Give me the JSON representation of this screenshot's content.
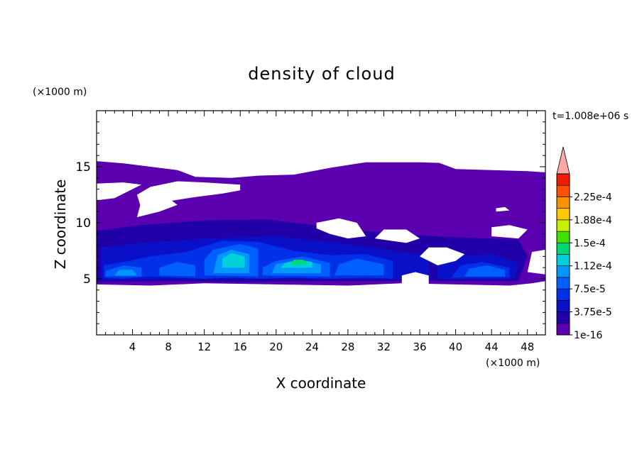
{
  "chart_data": {
    "type": "contour",
    "title": "density of cloud",
    "xlabel": "X coordinate",
    "ylabel": "Z coordinate",
    "x_unit": "(×1000 m)",
    "y_unit": "(×1000 m)",
    "time_label": "t=1.008e+06 s",
    "xlim": [
      0,
      50
    ],
    "ylim": [
      0,
      20
    ],
    "x_ticks": [
      4,
      8,
      12,
      16,
      20,
      24,
      28,
      32,
      36,
      40,
      44,
      48
    ],
    "y_ticks": [
      5,
      10,
      15
    ],
    "colorbar": {
      "levels": [
        1e-16,
        1.875e-05,
        3.75e-05,
        5.625e-05,
        7.5e-05,
        9.375e-05,
        0.0001125,
        0.00013125,
        0.00015,
        0.00016875,
        0.0001875,
        0.00020625,
        0.000225,
        0.00024375
      ],
      "tick_labels": [
        "1e-16",
        "3.75e-5",
        "7.5e-5",
        "1.12e-4",
        "1.5e-4",
        "1.88e-4",
        "2.25e-4"
      ],
      "colors": [
        "#5a00b0",
        "#2200a8",
        "#0a10c8",
        "#0030e8",
        "#0060ff",
        "#0098ff",
        "#00d0d8",
        "#00d870",
        "#40e000",
        "#c8f000",
        "#ffc800",
        "#ff9000",
        "#ff5000",
        "#ee1c00"
      ],
      "extend_color": "#ffa8a8"
    },
    "regions": [
      {
        "level": 1,
        "polygon": [
          [
            0,
            4.5
          ],
          [
            6,
            4.4
          ],
          [
            12,
            4.6
          ],
          [
            20,
            4.5
          ],
          [
            28,
            4.4
          ],
          [
            34,
            4.6
          ],
          [
            40,
            4.5
          ],
          [
            46,
            4.4
          ],
          [
            48.5,
            4.6
          ],
          [
            50,
            4.8
          ],
          [
            50,
            15.1
          ],
          [
            46,
            15.2
          ],
          [
            40,
            15.3
          ],
          [
            36,
            15.4
          ],
          [
            30,
            15.4
          ],
          [
            26,
            14.9
          ],
          [
            22,
            14.3
          ],
          [
            18,
            14.2
          ],
          [
            15,
            14.0
          ],
          [
            11,
            14.1
          ],
          [
            9,
            14.7
          ],
          [
            6,
            15.0
          ],
          [
            3,
            15.3
          ],
          [
            0,
            15.5
          ]
        ]
      },
      {
        "level": 2,
        "polygon": [
          [
            0,
            4.7
          ],
          [
            8,
            4.8
          ],
          [
            16,
            4.7
          ],
          [
            24,
            4.8
          ],
          [
            32,
            4.8
          ],
          [
            40,
            4.8
          ],
          [
            47,
            4.8
          ],
          [
            48,
            7
          ],
          [
            47,
            8.5
          ],
          [
            40,
            8.7
          ],
          [
            33,
            9.0
          ],
          [
            26,
            9.6
          ],
          [
            19,
            10.3
          ],
          [
            12,
            10.2
          ],
          [
            5,
            9.8
          ],
          [
            0,
            9.3
          ]
        ]
      },
      {
        "level": 3,
        "polygon": [
          [
            0.5,
            4.9
          ],
          [
            10,
            5.0
          ],
          [
            20,
            5.0
          ],
          [
            30,
            5.0
          ],
          [
            37,
            5.0
          ],
          [
            37,
            7.0
          ],
          [
            30,
            7.9
          ],
          [
            20,
            8.8
          ],
          [
            12,
            8.6
          ],
          [
            5,
            8.2
          ],
          [
            0.5,
            7.8
          ]
        ]
      },
      {
        "level": 3,
        "polygon": [
          [
            38,
            5.0
          ],
          [
            46.5,
            5.0
          ],
          [
            47,
            6.4
          ],
          [
            44,
            7.2
          ],
          [
            40,
            7.0
          ],
          [
            38,
            6.5
          ]
        ]
      },
      {
        "level": 4,
        "polygon": [
          [
            0.8,
            5.1
          ],
          [
            3,
            5.0
          ],
          [
            6,
            5.2
          ],
          [
            9,
            5.1
          ],
          [
            12,
            5.0
          ],
          [
            15,
            5.1
          ],
          [
            18,
            5.0
          ],
          [
            22,
            5.1
          ],
          [
            26,
            5.0
          ],
          [
            30,
            5.1
          ],
          [
            33,
            5.0
          ],
          [
            33,
            6.6
          ],
          [
            30,
            7.2
          ],
          [
            26,
            7.1
          ],
          [
            22,
            7.5
          ],
          [
            18,
            8.3
          ],
          [
            14,
            8.4
          ],
          [
            10,
            7.4
          ],
          [
            6,
            7.0
          ],
          [
            3,
            6.5
          ],
          [
            0.8,
            6.2
          ]
        ]
      },
      {
        "level": 4,
        "polygon": [
          [
            39.5,
            5.1
          ],
          [
            46,
            5.1
          ],
          [
            46,
            6.0
          ],
          [
            43,
            6.5
          ],
          [
            40.5,
            6.2
          ]
        ]
      },
      {
        "level": 5,
        "polygon": [
          [
            1,
            5.2
          ],
          [
            5,
            5.2
          ],
          [
            5,
            6.0
          ],
          [
            3,
            6.2
          ],
          [
            1,
            5.7
          ]
        ]
      },
      {
        "level": 5,
        "polygon": [
          [
            7,
            5.3
          ],
          [
            11,
            5.2
          ],
          [
            11,
            6.2
          ],
          [
            9,
            6.5
          ],
          [
            7,
            6.0
          ]
        ]
      },
      {
        "level": 5,
        "polygon": [
          [
            12,
            5.3
          ],
          [
            18,
            5.2
          ],
          [
            18,
            7.7
          ],
          [
            16,
            8.1
          ],
          [
            13,
            7.6
          ],
          [
            12,
            6.7
          ]
        ]
      },
      {
        "level": 5,
        "polygon": [
          [
            18.5,
            5.3
          ],
          [
            26,
            5.2
          ],
          [
            26,
            6.4
          ],
          [
            23,
            7.0
          ],
          [
            20,
            6.6
          ],
          [
            18.5,
            6.0
          ]
        ]
      },
      {
        "level": 5,
        "polygon": [
          [
            26.5,
            5.3
          ],
          [
            32,
            5.3
          ],
          [
            32,
            6.3
          ],
          [
            29,
            6.8
          ],
          [
            27,
            6.3
          ]
        ]
      },
      {
        "level": 5,
        "polygon": [
          [
            41,
            5.2
          ],
          [
            45.5,
            5.2
          ],
          [
            45.5,
            5.8
          ],
          [
            43.5,
            6.2
          ],
          [
            41.5,
            5.9
          ]
        ]
      },
      {
        "level": 6,
        "polygon": [
          [
            13,
            5.5
          ],
          [
            17,
            5.5
          ],
          [
            17,
            7.2
          ],
          [
            15,
            7.6
          ],
          [
            13.5,
            7.1
          ]
        ]
      },
      {
        "level": 6,
        "polygon": [
          [
            19.5,
            5.5
          ],
          [
            25,
            5.5
          ],
          [
            25,
            6.3
          ],
          [
            22.5,
            6.7
          ],
          [
            20,
            6.3
          ]
        ]
      },
      {
        "level": 6,
        "polygon": [
          [
            2,
            5.3
          ],
          [
            4.5,
            5.3
          ],
          [
            4,
            5.8
          ],
          [
            2.5,
            5.8
          ]
        ]
      },
      {
        "level": 7,
        "polygon": [
          [
            14,
            6.0
          ],
          [
            16.5,
            6.0
          ],
          [
            16.5,
            7.0
          ],
          [
            15,
            7.3
          ],
          [
            14,
            6.8
          ]
        ]
      },
      {
        "level": 7,
        "polygon": [
          [
            20.5,
            6.0
          ],
          [
            24,
            6.0
          ],
          [
            24,
            6.5
          ],
          [
            22.5,
            6.7
          ],
          [
            21,
            6.4
          ]
        ]
      },
      {
        "level": 8,
        "polygon": [
          [
            21.5,
            6.3
          ],
          [
            23.5,
            6.3
          ],
          [
            23,
            6.7
          ],
          [
            22,
            6.7
          ]
        ]
      }
    ],
    "holes": [
      {
        "polygon": [
          [
            0,
            12.0
          ],
          [
            2,
            12.2
          ],
          [
            5,
            13.4
          ],
          [
            3,
            13.6
          ],
          [
            0,
            13.5
          ]
        ]
      },
      {
        "polygon": [
          [
            5,
            11.2
          ],
          [
            7,
            11.8
          ],
          [
            11,
            12.3
          ],
          [
            14,
            12.6
          ],
          [
            16,
            12.9
          ],
          [
            16,
            13.4
          ],
          [
            12,
            13.6
          ],
          [
            9,
            13.7
          ],
          [
            6,
            13.2
          ],
          [
            4.5,
            12.5
          ]
        ]
      },
      {
        "level_note": "upper-left cloud-free pocket",
        "polygon": [
          [
            4.5,
            10.5
          ],
          [
            7,
            11.0
          ],
          [
            9,
            11.6
          ],
          [
            8,
            12.2
          ],
          [
            5,
            12.0
          ]
        ]
      },
      {
        "polygon": [
          [
            24.5,
            10.0
          ],
          [
            27,
            10.4
          ],
          [
            29,
            10.0
          ],
          [
            30,
            8.8
          ],
          [
            28,
            8.6
          ],
          [
            26,
            9.0
          ],
          [
            24.5,
            9.5
          ]
        ]
      },
      {
        "polygon": [
          [
            31,
            8.6
          ],
          [
            34.5,
            8.2
          ],
          [
            36,
            8.6
          ],
          [
            34.5,
            9.4
          ],
          [
            32,
            9.4
          ]
        ]
      },
      {
        "polygon": [
          [
            36,
            7.0
          ],
          [
            38,
            6.2
          ],
          [
            40,
            6.6
          ],
          [
            41,
            7.2
          ],
          [
            39,
            7.8
          ],
          [
            37,
            7.8
          ]
        ]
      },
      {
        "polygon": [
          [
            44,
            8.8
          ],
          [
            47,
            8.6
          ],
          [
            48,
            9.4
          ],
          [
            46,
            9.8
          ],
          [
            44,
            9.6
          ]
        ]
      },
      {
        "polygon": [
          [
            34,
            4.4
          ],
          [
            37,
            4.4
          ],
          [
            37,
            5.3
          ],
          [
            35.5,
            5.6
          ],
          [
            34,
            5.3
          ]
        ]
      },
      {
        "polygon": [
          [
            44.5,
            11.0
          ],
          [
            46,
            11.1
          ],
          [
            45.5,
            11.4
          ],
          [
            44.5,
            11.3
          ]
        ]
      },
      {
        "polygon": [
          [
            38,
            15.4
          ],
          [
            40,
            14.8
          ],
          [
            44,
            14.7
          ],
          [
            48,
            14.6
          ],
          [
            50,
            14.5
          ],
          [
            50,
            15.4
          ],
          [
            44,
            15.6
          ]
        ]
      },
      {
        "polygon": [
          [
            48,
            5.6
          ],
          [
            50,
            5.4
          ],
          [
            50,
            7.6
          ],
          [
            48.5,
            7.4
          ]
        ]
      }
    ]
  }
}
